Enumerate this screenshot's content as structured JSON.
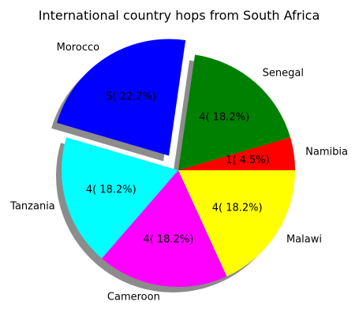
{
  "chart_data": {
    "type": "pie",
    "title": "International country hops from South Africa",
    "categories": [
      "Namibia",
      "Senegal",
      "Morocco",
      "Tanzania",
      "Cameroon",
      "Malawi"
    ],
    "values": [
      1,
      4,
      5,
      4,
      4,
      4
    ],
    "percent_labels": [
      "1( 4.5%)",
      "4( 18.2%)",
      "5( 22.7%)",
      "4( 18.2%)",
      "4( 18.2%)",
      "4( 18.2%)"
    ],
    "colors": [
      "#ff0000",
      "#008000",
      "#0000ff",
      "#00ffff",
      "#ff00ff",
      "#ffff00"
    ],
    "exploded": [
      "Morocco"
    ],
    "shadow": true,
    "start_angle_deg": 0,
    "direction": "counterclockwise"
  }
}
